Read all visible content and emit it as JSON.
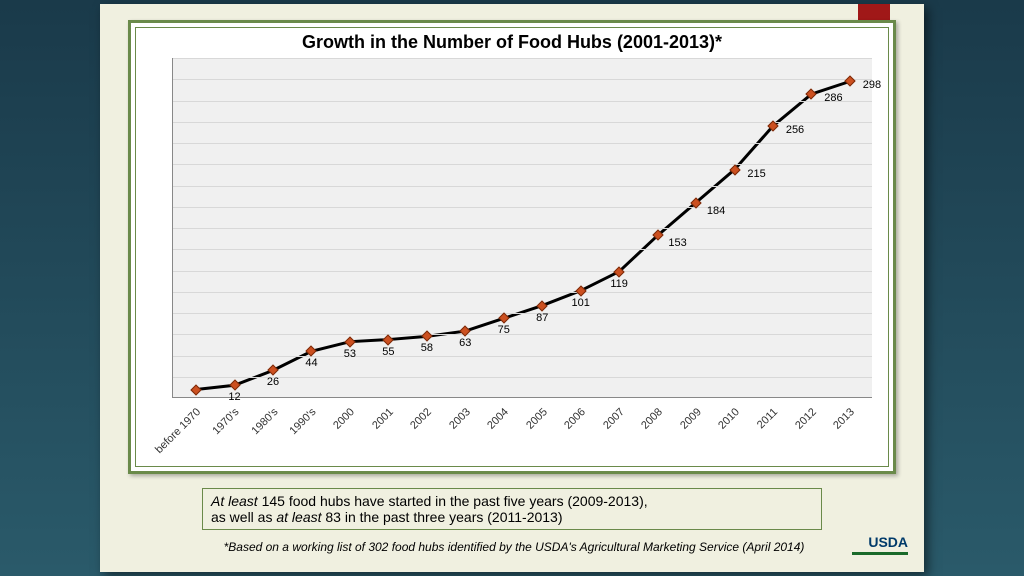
{
  "chart": {
    "type": "line",
    "title": "Growth in the Number of Food Hubs (2001-2013)*",
    "title_fontsize": 18,
    "categories": [
      "before 1970",
      "1970's",
      "1980's",
      "1990's",
      "2000",
      "2001",
      "2002",
      "2003",
      "2004",
      "2005",
      "2006",
      "2007",
      "2008",
      "2009",
      "2010",
      "2011",
      "2012",
      "2013"
    ],
    "values": [
      8,
      12,
      26,
      44,
      53,
      55,
      58,
      63,
      75,
      87,
      101,
      119,
      153,
      184,
      215,
      256,
      286,
      298
    ],
    "value_labels": [
      "",
      "12",
      "26",
      "44",
      "53",
      "55",
      "58",
      "63",
      "75",
      "87",
      "101",
      "119",
      "153",
      "184",
      "215",
      "256",
      "286",
      "298"
    ],
    "ylim": [
      0,
      320
    ],
    "grid_lines": 16,
    "line_color": "#000000",
    "line_width": 3,
    "marker_color": "#cc5020",
    "marker_border": "#7a2a0a",
    "plot_bg": "#f0f0f0",
    "grid_color": "#d8d8d8",
    "label_fontsize": 11
  },
  "caption": {
    "line1_pre": "At least",
    "line1_mid": " 145 food hubs have started in the past five years (2009-2013),",
    "line2_pre": "as well as ",
    "line2_italic": "at least",
    "line2_post": " 83 in the past three years (2011-2013)"
  },
  "footnote": "*Based on a working list of 302 food hubs identified by the USDA's Agricultural Marketing Service (April 2014)",
  "logo": "USDA",
  "colors": {
    "slide_bg": "#f0f0e0",
    "page_bg_top": "#1a3a4a",
    "page_bg_bottom": "#2a5a6a",
    "accent_red": "#a01818",
    "border_green": "#6a8a4a"
  }
}
